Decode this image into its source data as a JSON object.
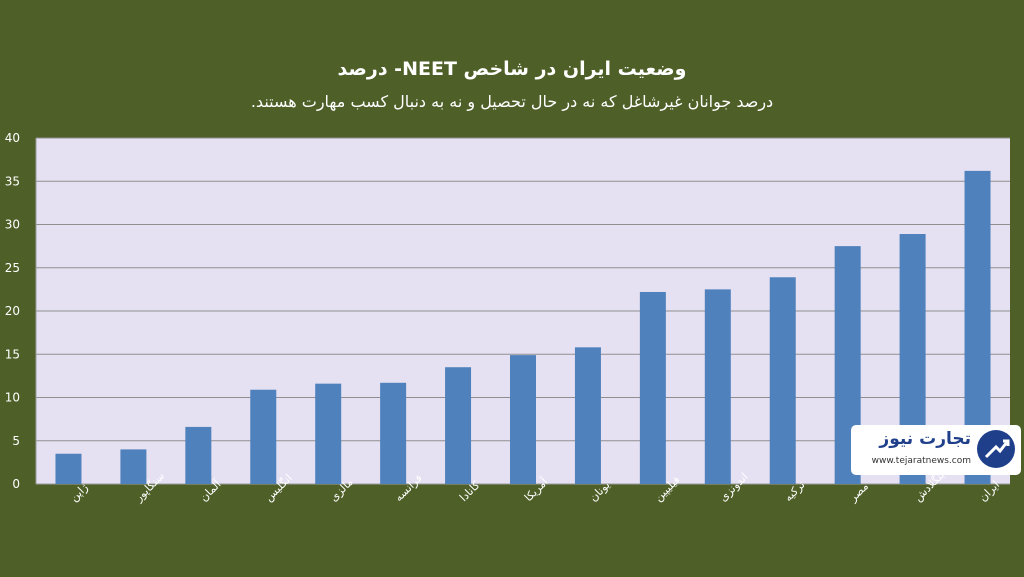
{
  "chart_data": {
    "type": "bar",
    "title": "وضعیت ایران در شاخص NEET- درصد",
    "subtitle": "درصد جوانان غیرشاغل که نه در حال تحصیل و نه به دنبال کسب مهارت هستند.",
    "categories": [
      "ژاپن",
      "سنگاپور",
      "آلمان",
      "انگلیس",
      "مالزی",
      "فرانسه",
      "کانادا",
      "آمریکا",
      "یونان",
      "فیلیپین",
      "اندونزی",
      "ترکیه",
      "مصر",
      "بنگلادش",
      "ایران"
    ],
    "values": [
      3.5,
      4.0,
      6.6,
      10.9,
      11.6,
      11.7,
      13.5,
      14.9,
      15.8,
      22.2,
      22.5,
      23.9,
      27.5,
      28.9,
      36.2
    ],
    "ylim": [
      0,
      40
    ],
    "yticks": [
      "0",
      "5",
      "10",
      "15",
      "20",
      "25",
      "30",
      "35",
      "40"
    ],
    "grid": true,
    "colors": {
      "bar": "#4f81bd",
      "plot_bg": "#e6e1f2",
      "grid": "#8f8f8f",
      "axis": "#9c9c9c"
    }
  },
  "watermark": {
    "name": "تجارت نیوز",
    "url": "www.tejaratnews.com",
    "icon": "tejaratnews-logo-icon"
  }
}
